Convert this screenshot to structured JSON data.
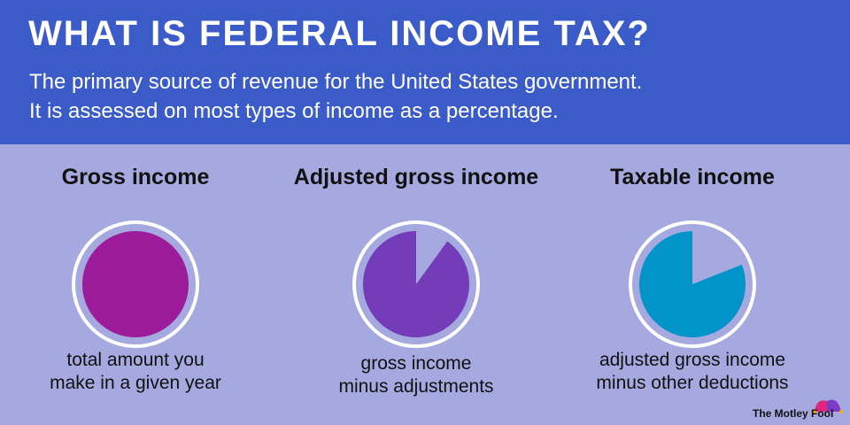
{
  "header": {
    "title": "WHAT IS FEDERAL INCOME TAX?",
    "subtitle_lines": [
      "The primary source of revenue for the United States government.",
      "It is assessed on most types of income as a percentage."
    ]
  },
  "colors": {
    "header": "#3a5bc8",
    "background": "#a6a8e0",
    "gross": "#9b1b9b",
    "agi": "#743cb8",
    "taxable": "#0194c8"
  },
  "items": [
    {
      "title": "Gross income",
      "fraction": 1.0,
      "color": "#9b1b9b",
      "desc": [
        "total amount you",
        "make in a given year"
      ]
    },
    {
      "title": "Adjusted gross income",
      "fraction": 0.9,
      "color": "#743cb8",
      "desc": [
        "gross income",
        "minus adjustments"
      ]
    },
    {
      "title": "Taxable income",
      "fraction": 0.81,
      "color": "#0194c8",
      "desc": [
        "adjusted gross income",
        "minus other deductions"
      ]
    }
  ],
  "logo": "The Motley Fool"
}
